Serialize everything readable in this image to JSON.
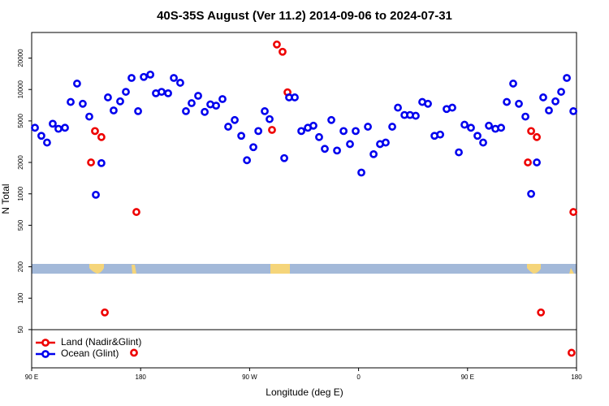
{
  "chart_data": {
    "type": "scatter",
    "title": "40S-35S August (Ver 11.2)   2014-09-06 to 2024-07-31",
    "x_label": "Longitude (deg E)",
    "y_label": "N Total",
    "log_y": true,
    "legend": "bottom-left",
    "xlim": [
      90,
      540
    ],
    "ylim": [
      21.5,
      35200
    ],
    "xticks": [
      {
        "value": 90,
        "label": "90 E"
      },
      {
        "value": 180,
        "label": "180"
      },
      {
        "value": 270,
        "label": "90 W"
      },
      {
        "value": 360,
        "label": "0"
      },
      {
        "value": 450,
        "label": "90 E"
      },
      {
        "value": 540,
        "label": "180"
      }
    ],
    "yticks": [
      50,
      100,
      200,
      500,
      1000,
      2000,
      5000,
      10000,
      20000
    ],
    "series": [
      {
        "name": "Land (Nadir&Glint)",
        "color": "#ee0000",
        "x": [
          139.0,
          142.3,
          147.6,
          150.4,
          174.5,
          176.5,
          288.5,
          292.5,
          297.2,
          301.3,
          499.8,
          502.5,
          507.2,
          510.6,
          535.9,
          537.4
        ],
        "values": [
          2000,
          4000,
          3500,
          73,
          30,
          670,
          4100,
          27000,
          23000,
          9400,
          2000,
          4000,
          3500,
          73,
          30,
          670
        ]
      },
      {
        "name": "Ocean (Glint)",
        "color": "#0000ee",
        "x": [
          92.7,
          98.0,
          102.7,
          107.4,
          112.1,
          117.5,
          122.2,
          127.5,
          132.2,
          137.6,
          143.0,
          147.6,
          153.0,
          157.7,
          163.1,
          167.8,
          172.5,
          177.9,
          182.6,
          188.0,
          192.6,
          197.3,
          202.7,
          207.4,
          212.7,
          217.4,
          222.1,
          227.5,
          232.9,
          237.6,
          242.3,
          247.6,
          252.3,
          257.7,
          263.1,
          267.8,
          273.1,
          277.2,
          282.5,
          286.5,
          298.6,
          302.6,
          307.3,
          312.7,
          318.1,
          322.7,
          327.4,
          332.1,
          337.5,
          342.2,
          347.6,
          352.9,
          357.6,
          362.3,
          367.7,
          372.4,
          377.7,
          382.4,
          387.8,
          392.5,
          397.9,
          402.5,
          407.2,
          412.6,
          417.3,
          422.7,
          427.4,
          432.7,
          437.4,
          442.8,
          447.5,
          452.8,
          458.2,
          462.9,
          467.6,
          473.0,
          477.7,
          482.4,
          487.7,
          492.4,
          497.8,
          502.5,
          507.2,
          512.5,
          517.2,
          522.6,
          527.3,
          532.0,
          537.4
        ],
        "values": [
          4300,
          3600,
          3100,
          4700,
          4200,
          4300,
          7600,
          11400,
          7300,
          5500,
          980,
          1970,
          8400,
          6300,
          7700,
          9500,
          12900,
          6200,
          13200,
          13900,
          9200,
          9500,
          9200,
          12900,
          11600,
          6200,
          7400,
          8700,
          6100,
          7200,
          7000,
          8100,
          4400,
          5100,
          3600,
          2100,
          2800,
          4000,
          6200,
          5200,
          2200,
          8400,
          8400,
          4000,
          4300,
          4500,
          3500,
          2700,
          5100,
          2600,
          4000,
          3000,
          4000,
          1600,
          4400,
          2400,
          3000,
          3100,
          4400,
          6700,
          5700,
          5700,
          5600,
          7600,
          7300,
          3600,
          3700,
          6500,
          6700,
          2500,
          4600,
          4300,
          3600,
          3100,
          4500,
          4200,
          4300,
          7600,
          11400,
          7300,
          5500,
          1000,
          2000,
          8400,
          6300,
          7700,
          9500,
          12900,
          6200
        ]
      }
    ]
  }
}
